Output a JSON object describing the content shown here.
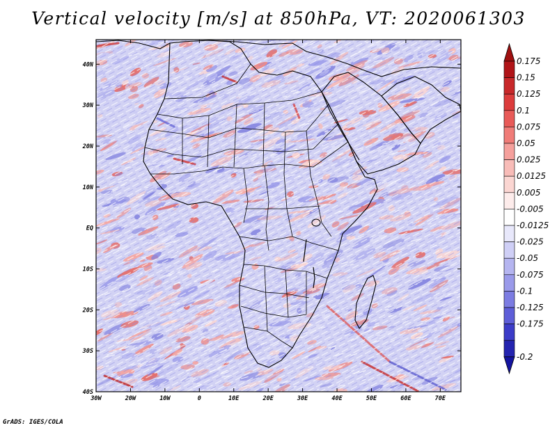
{
  "title": "Vertical velocity [m/s] at 850hPa, VT: 2020061303",
  "footer": "GrADS: IGES/COLA",
  "map": {
    "lon_range": [
      -30,
      76
    ],
    "lat_range": [
      -40,
      46
    ],
    "lat_ticks": [
      {
        "value": 40,
        "label": "40N"
      },
      {
        "value": 30,
        "label": "30N"
      },
      {
        "value": 20,
        "label": "20N"
      },
      {
        "value": 10,
        "label": "10N"
      },
      {
        "value": 0,
        "label": "EQ"
      },
      {
        "value": -10,
        "label": "10S"
      },
      {
        "value": -20,
        "label": "20S"
      },
      {
        "value": -30,
        "label": "30S"
      },
      {
        "value": -40,
        "label": "40S"
      }
    ],
    "lon_ticks": [
      {
        "value": -30,
        "label": "30W"
      },
      {
        "value": -20,
        "label": "20W"
      },
      {
        "value": -10,
        "label": "10W"
      },
      {
        "value": 0,
        "label": "0"
      },
      {
        "value": 10,
        "label": "10E"
      },
      {
        "value": 20,
        "label": "20E"
      },
      {
        "value": 30,
        "label": "30E"
      },
      {
        "value": 40,
        "label": "40E"
      },
      {
        "value": 50,
        "label": "50E"
      },
      {
        "value": 60,
        "label": "60E"
      },
      {
        "value": 70,
        "label": "70E"
      }
    ]
  },
  "colorbar": {
    "min_arrow_label": "-0.2",
    "bins": [
      {
        "label": "0.175",
        "color": "#b01418"
      },
      {
        "label": "0.15",
        "color": "#c8282a"
      },
      {
        "label": "0.125",
        "color": "#dc3c3c"
      },
      {
        "label": "0.1",
        "color": "#e85a58"
      },
      {
        "label": "0.075",
        "color": "#f07c78"
      },
      {
        "label": "0.05",
        "color": "#f5a09c"
      },
      {
        "label": "0.025",
        "color": "#f8bcb8"
      },
      {
        "label": "0.0125",
        "color": "#fbd6d2"
      },
      {
        "label": "0.005",
        "color": "#fdeceb"
      },
      {
        "label": "-0.005",
        "color": "#ffffff"
      },
      {
        "label": "-0.0125",
        "color": "#e8e8fb"
      },
      {
        "label": "-0.025",
        "color": "#cfcff6"
      },
      {
        "label": "-0.05",
        "color": "#b5b5f0"
      },
      {
        "label": "-0.075",
        "color": "#9a9aea"
      },
      {
        "label": "-0.1",
        "color": "#7c7ce2"
      },
      {
        "label": "-0.125",
        "color": "#5e5ed8"
      },
      {
        "label": "-0.175",
        "color": "#3c3cc8"
      },
      {
        "label": "",
        "color": "#2424b0"
      }
    ],
    "top_arrow_color": "#a01010",
    "bottom_arrow_color": "#1414a0"
  }
}
